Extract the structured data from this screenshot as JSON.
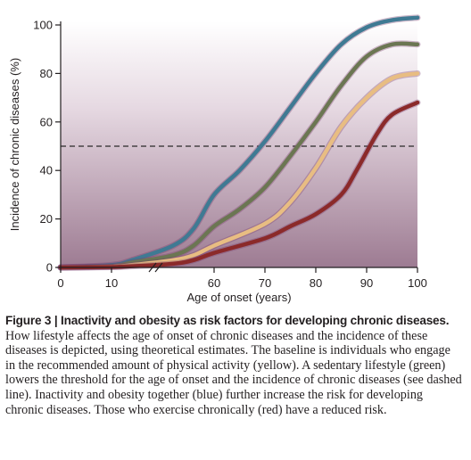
{
  "chart_data": {
    "type": "line",
    "title": "",
    "xlabel": "Age of onset (years)",
    "ylabel": "Incidence of chronic diseases (%)",
    "xlim": [
      0,
      100
    ],
    "ylim": [
      0,
      100
    ],
    "x_axis_break": "between 10 and 60",
    "x_ticks": [
      0,
      10,
      60,
      70,
      80,
      90,
      100
    ],
    "y_ticks": [
      0,
      20,
      40,
      60,
      80,
      100
    ],
    "x_tick_labels": [
      "0",
      "10",
      "60",
      "70",
      "80",
      "90",
      "100"
    ],
    "y_tick_labels": [
      "0",
      "20",
      "40",
      "60",
      "80",
      "100"
    ],
    "threshold_line": {
      "y": 50,
      "style": "dashed"
    },
    "background": "vertical gradient, white at top to mauve at bottom",
    "grid": false,
    "legend": "none",
    "series": [
      {
        "color": "#3f7a93",
        "x": [
          0,
          10,
          20,
          40,
          50,
          60,
          65,
          70,
          75,
          80,
          85,
          90,
          95,
          100
        ],
        "values": [
          0,
          1,
          3,
          9,
          16,
          30,
          40,
          52,
          66,
          80,
          92,
          99,
          102,
          103
        ]
      },
      {
        "color": "#6b7652",
        "x": [
          0,
          10,
          20,
          40,
          50,
          60,
          65,
          70,
          75,
          80,
          85,
          90,
          95,
          100
        ],
        "values": [
          0,
          0.5,
          2,
          5,
          9,
          17,
          24,
          33,
          46,
          60,
          75,
          87,
          92,
          92
        ]
      },
      {
        "color": "#e8bd82",
        "x": [
          0,
          10,
          20,
          40,
          50,
          60,
          70,
          75,
          80,
          85,
          90,
          95,
          100
        ],
        "values": [
          0,
          0.3,
          1,
          3,
          5,
          9,
          18,
          27,
          41,
          58,
          70,
          78,
          80
        ]
      },
      {
        "color": "#8b2a2a",
        "x": [
          0,
          10,
          20,
          40,
          50,
          60,
          70,
          75,
          80,
          85,
          88,
          92,
          95,
          100
        ],
        "values": [
          0,
          0.2,
          0.5,
          1.5,
          3,
          6,
          12,
          17,
          22,
          30,
          40,
          55,
          63,
          68
        ]
      }
    ]
  },
  "caption": {
    "label": "Figure 3 | ",
    "title": "Inactivity and obesity as risk factors for developing chronic diseases.",
    "body": " How lifestyle affects the age of onset of chronic diseases and the incidence of these diseases is depicted, using theoretical estimates. The baseline is individuals who engage in the recommended amount of physical activity (yellow). A sedentary lifestyle (green) lowers the threshold for the age of onset and the incidence of chronic diseases (see dashed line). Inactivity and obesity together (blue) further increase the risk for developing chronic diseases. Those who exercise chronically (red) have a reduced risk."
  }
}
